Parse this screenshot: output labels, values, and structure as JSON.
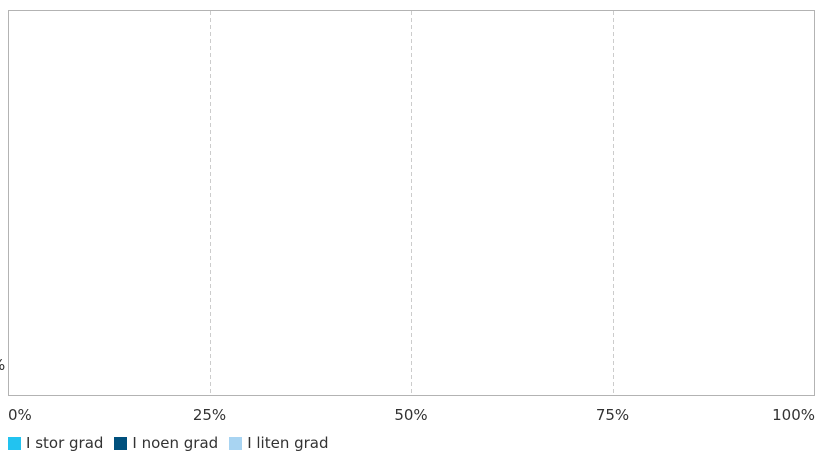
{
  "chart_data": {
    "type": "bar",
    "orientation": "horizontal",
    "stacked": true,
    "categories": [
      ""
    ],
    "series": [
      {
        "name": "I stor grad",
        "color": "#22c3f0",
        "values": [
          null
        ]
      },
      {
        "name": "I noen grad",
        "color": "#00507d",
        "values": [
          null
        ]
      },
      {
        "name": "I liten grad",
        "color": "#a8d4f2",
        "values": [
          null
        ]
      }
    ],
    "x_ticks": [
      "0%",
      "25%",
      "50%",
      "75%",
      "100%"
    ],
    "x_tick_values": [
      0,
      25,
      50,
      75,
      100
    ],
    "xlim": [
      0,
      100
    ],
    "grid": true,
    "legend_position": "bottom-left",
    "left_clipped_label": "%"
  }
}
